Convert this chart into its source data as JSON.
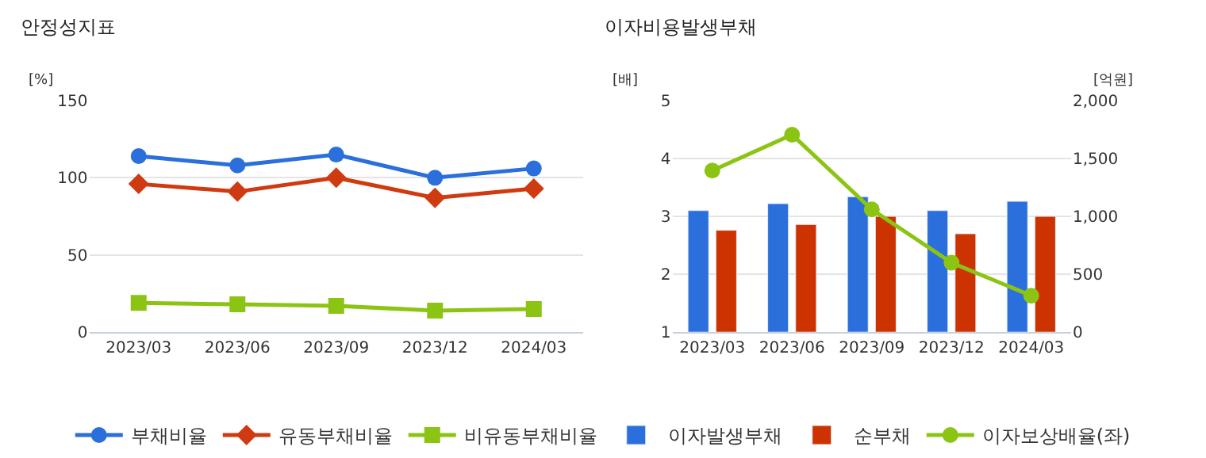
{
  "chart_data": [
    {
      "type": "line",
      "title": "안정성지표",
      "ylabel": "[%]",
      "categories": [
        "2023/03",
        "2023/06",
        "2023/09",
        "2023/12",
        "2024/03"
      ],
      "series": [
        {
          "name": "부채비율",
          "color": "#2a6fdb",
          "marker": "circle",
          "values": [
            114,
            108,
            115,
            100,
            106
          ]
        },
        {
          "name": "유동부채비율",
          "color": "#d03a10",
          "marker": "diamond",
          "values": [
            96,
            91,
            100,
            87,
            93
          ]
        },
        {
          "name": "비유동부채비율",
          "color": "#8cc414",
          "marker": "square",
          "values": [
            19,
            18,
            17,
            14,
            15
          ]
        }
      ],
      "ylim": [
        0,
        150
      ],
      "yticks": [
        0,
        50,
        100,
        150
      ],
      "grid": "y",
      "legend": "bottom"
    },
    {
      "type": "bar",
      "title": "이자비용발생부채",
      "ylabel": "[배]",
      "y2label": "[억원]",
      "categories": [
        "2023/03",
        "2023/06",
        "2023/09",
        "2023/12",
        "2024/03"
      ],
      "series": [
        {
          "name": "이자발생부채",
          "color": "#2a6fdb",
          "axis": "y2",
          "values": [
            1050,
            1110,
            1170,
            1050,
            1130
          ]
        },
        {
          "name": "순부채",
          "color": "#cc3300",
          "axis": "y2",
          "values": [
            880,
            930,
            1000,
            850,
            1000
          ]
        },
        {
          "name": "이자보상배율(좌)",
          "type": "line",
          "color": "#8cc414",
          "marker": "circle",
          "values": [
            3.79,
            4.41,
            3.12,
            2.2,
            1.63
          ]
        }
      ],
      "ylim": [
        1,
        5
      ],
      "yticks": [
        1,
        2,
        3,
        4,
        5
      ],
      "y2lim": [
        0,
        2000
      ],
      "y2ticks": [
        0,
        500,
        {
          "value": 1000,
          "label": "1,000"
        },
        {
          "value": 1500,
          "label": "1,500"
        },
        {
          "value": 2000,
          "label": "2,000"
        }
      ],
      "grid": "y",
      "legend": "bottom"
    }
  ]
}
